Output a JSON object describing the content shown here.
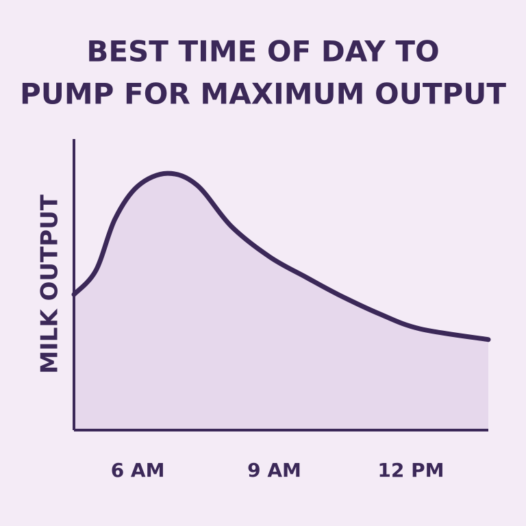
{
  "chart_data": {
    "type": "area",
    "title": [
      "BEST TIME OF DAY TO",
      "PUMP FOR MAXIMUM OUTPUT"
    ],
    "y_label": "MILK OUTPUT",
    "x": [
      4.6,
      5.08,
      5.5,
      6.0,
      6.65,
      7.3,
      8.05,
      8.9,
      9.7,
      10.4,
      11.3,
      12.2,
      13.7
    ],
    "values": [
      46.6,
      54.8,
      72.5,
      83.8,
      88.2,
      84.2,
      70.1,
      59.5,
      52.5,
      46.6,
      40,
      34.8,
      31.1
    ],
    "xlim": [
      4.6,
      13.7
    ],
    "xticks": [
      {
        "value": 6,
        "label": "6 AM"
      },
      {
        "value": 9,
        "label": "9 AM"
      },
      {
        "value": 12,
        "label": "12 PM"
      }
    ],
    "ylim": [
      0,
      100
    ],
    "line_color": "#3b2858",
    "fill_color": "#e6d8ec"
  }
}
